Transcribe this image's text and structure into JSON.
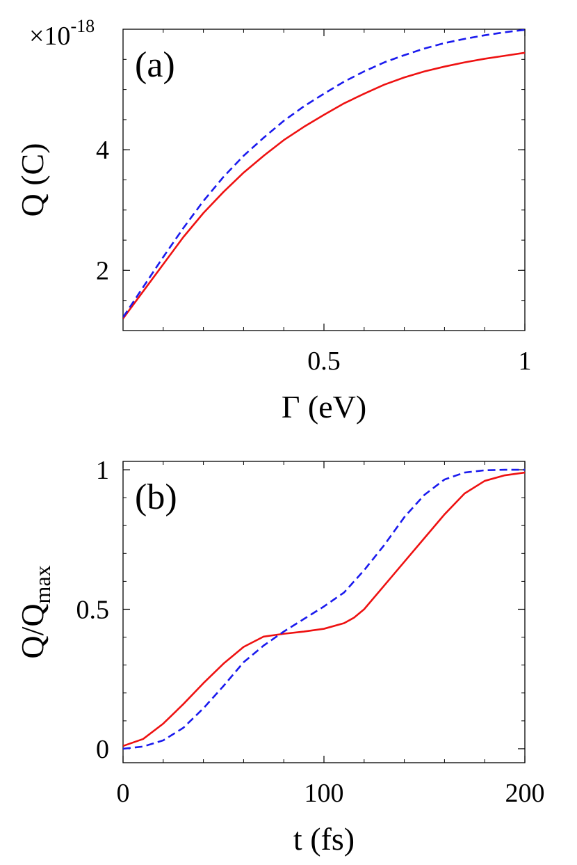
{
  "chart_data": [
    {
      "type": "line",
      "panel_label": "(a)",
      "xlabel_symbol": "Γ",
      "xlabel_unit": "(eV)",
      "ylabel": "Q (C)",
      "y_multiplier_base": "×10",
      "y_multiplier_exp": "-18",
      "xlim": [
        0.0,
        1.0
      ],
      "ylim": [
        1.0,
        6.0
      ],
      "xticks": [
        0.5,
        1
      ],
      "xtick_labels": [
        "0.5",
        "1"
      ],
      "yticks": [
        2,
        4
      ],
      "ytick_labels": [
        "2",
        "4"
      ],
      "x_minor_step": 0.1,
      "y_minor_step": 0.5,
      "grid": false,
      "series": [
        {
          "color": "#ee1111",
          "dash": "solid",
          "x": [
            0.0,
            0.05,
            0.1,
            0.15,
            0.2,
            0.25,
            0.3,
            0.35,
            0.4,
            0.45,
            0.5,
            0.55,
            0.6,
            0.65,
            0.7,
            0.75,
            0.8,
            0.85,
            0.9,
            0.95,
            1.0
          ],
          "y": [
            1.2,
            1.65,
            2.1,
            2.55,
            2.95,
            3.3,
            3.62,
            3.9,
            4.16,
            4.38,
            4.58,
            4.77,
            4.93,
            5.08,
            5.2,
            5.3,
            5.38,
            5.45,
            5.51,
            5.56,
            5.61
          ]
        },
        {
          "color": "#1a1aee",
          "dash": "dashed",
          "x": [
            0.0,
            0.05,
            0.1,
            0.15,
            0.2,
            0.25,
            0.3,
            0.35,
            0.4,
            0.45,
            0.5,
            0.55,
            0.6,
            0.65,
            0.7,
            0.75,
            0.8,
            0.85,
            0.9,
            0.95,
            1.0
          ],
          "y": [
            1.22,
            1.72,
            2.22,
            2.7,
            3.15,
            3.55,
            3.9,
            4.2,
            4.48,
            4.72,
            4.93,
            5.13,
            5.3,
            5.45,
            5.57,
            5.68,
            5.77,
            5.84,
            5.9,
            5.95,
            5.99
          ]
        }
      ]
    },
    {
      "type": "line",
      "panel_label": "(b)",
      "xlabel": "t (fs)",
      "ylabel_base": "Q/Q",
      "ylabel_sub": "max",
      "xlim": [
        0,
        200
      ],
      "ylim": [
        -0.05,
        1.03
      ],
      "xticks": [
        0,
        100,
        200
      ],
      "xtick_labels": [
        "0",
        "100",
        "200"
      ],
      "yticks": [
        0,
        0.5,
        1
      ],
      "ytick_labels": [
        "0",
        "0.5",
        "1"
      ],
      "x_minor_step": 20,
      "y_minor_step": 0.1,
      "grid": false,
      "series": [
        {
          "color": "#ee1111",
          "dash": "solid",
          "x": [
            0,
            10,
            20,
            30,
            40,
            50,
            60,
            70,
            80,
            90,
            100,
            110,
            115,
            120,
            130,
            140,
            150,
            160,
            170,
            180,
            190,
            200
          ],
          "y": [
            0.01,
            0.035,
            0.09,
            0.16,
            0.235,
            0.305,
            0.365,
            0.402,
            0.412,
            0.42,
            0.43,
            0.45,
            0.47,
            0.5,
            0.585,
            0.67,
            0.755,
            0.84,
            0.915,
            0.96,
            0.98,
            0.99
          ]
        },
        {
          "color": "#1a1aee",
          "dash": "dashed",
          "x": [
            0,
            10,
            20,
            30,
            40,
            50,
            60,
            70,
            80,
            90,
            100,
            110,
            120,
            130,
            140,
            150,
            160,
            170,
            180,
            190,
            200
          ],
          "y": [
            0.0,
            0.008,
            0.03,
            0.075,
            0.145,
            0.225,
            0.31,
            0.37,
            0.42,
            0.465,
            0.51,
            0.56,
            0.64,
            0.73,
            0.83,
            0.91,
            0.965,
            0.99,
            0.998,
            1.0,
            1.0
          ]
        }
      ]
    }
  ]
}
